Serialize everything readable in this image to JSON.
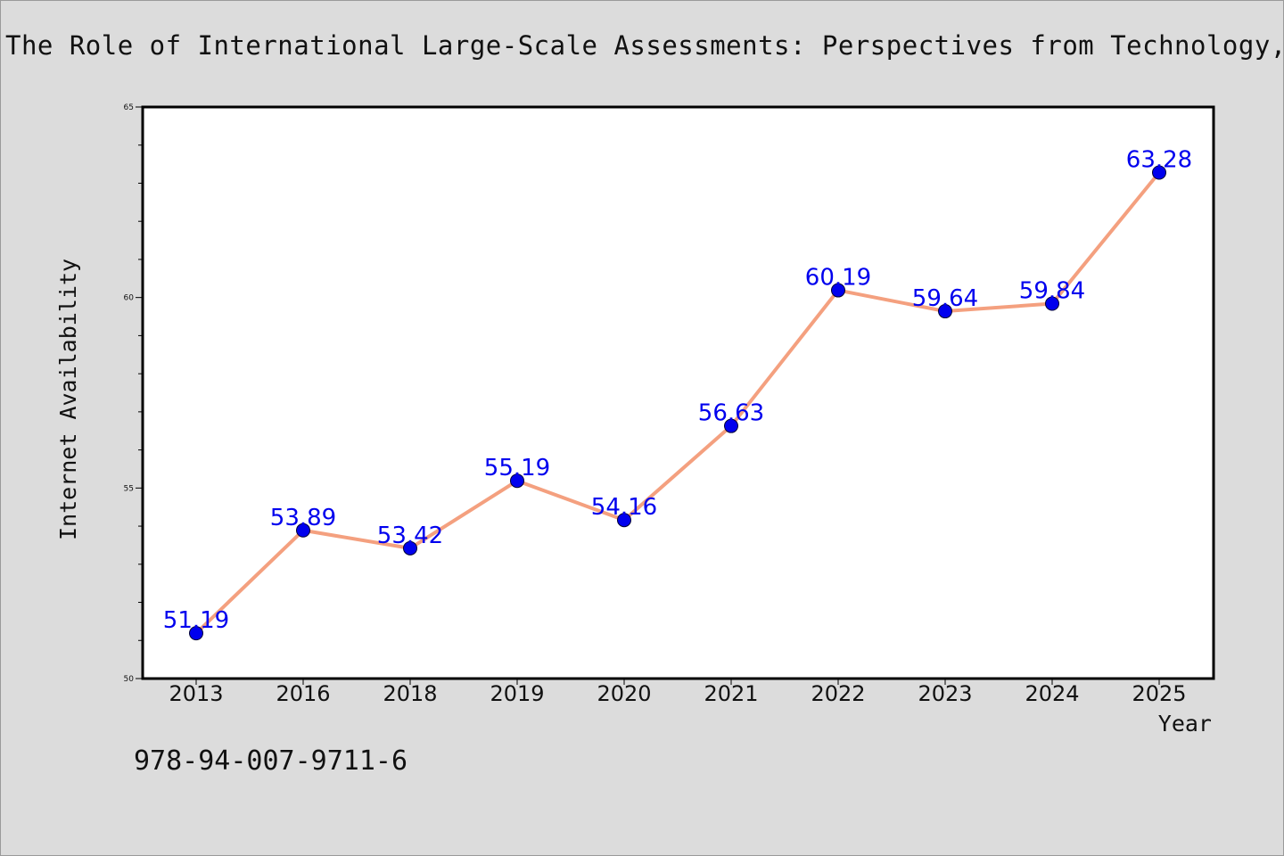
{
  "page": {
    "title": "The Role of International Large-Scale Assessments: Perspectives from Technology,",
    "footer_text": "978-94-007-9711-6",
    "background_color": "#dcdcdc"
  },
  "chart_data": {
    "type": "line",
    "title": "The Role of International Large-Scale Assessments: Perspectives from Technology,",
    "xlabel": "Year",
    "ylabel": "Internet Availability",
    "categories": [
      "2013",
      "2016",
      "2018",
      "2019",
      "2020",
      "2021",
      "2022",
      "2023",
      "2024",
      "2025"
    ],
    "series": [
      {
        "values": [
          51.19,
          53.89,
          53.42,
          55.19,
          54.16,
          56.63,
          60.19,
          59.64,
          59.84,
          63.28
        ],
        "data_labels": [
          "51.19",
          "53.89",
          "53.42",
          "55.19",
          "54.16",
          "56.63",
          "60.19",
          "59.64",
          "59.84",
          "63.28"
        ],
        "line_color": "#f4a07f",
        "marker_color": "#0000ee"
      }
    ],
    "ylim": [
      50,
      65
    ],
    "y_ticks": [
      50,
      55,
      60,
      65
    ],
    "y_tick_labels": [
      "50",
      "55",
      "60",
      "65"
    ],
    "y_minor_step": 1,
    "grid": false,
    "legend": "none"
  }
}
